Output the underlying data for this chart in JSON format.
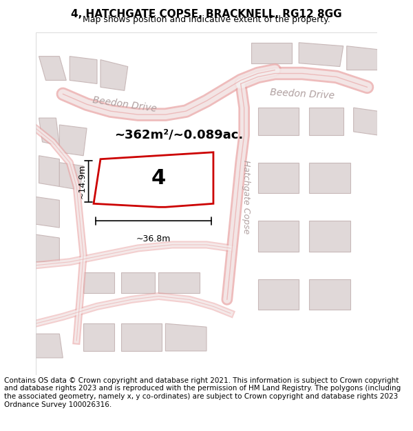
{
  "title_line1": "4, HATCHGATE COPSE, BRACKNELL, RG12 8GG",
  "title_line2": "Map shows position and indicative extent of the property.",
  "footer_text": "Contains OS data © Crown copyright and database right 2021. This information is subject to Crown copyright and database rights 2023 and is reproduced with the permission of HM Land Registry. The polygons (including the associated geometry, namely x, y co-ordinates) are subject to Crown copyright and database rights 2023 Ordnance Survey 100026316.",
  "bg_color": "#f5f0f0",
  "map_bg": "#f9f7f7",
  "road_color": "#e8a0a0",
  "building_color": "#d8d0d0",
  "building_fill": "#e0d8d8",
  "plot_color": "#cc0000",
  "plot_fill": "#ffffff",
  "street_label_color": "#aaaaaa",
  "annotation_color": "#000000",
  "title_fontsize": 11,
  "subtitle_fontsize": 9,
  "footer_fontsize": 7.5,
  "area_label": "~362m²/~0.089ac.",
  "number_label": "4",
  "width_label": "~36.8m",
  "height_label": "~14.9m",
  "beedon_drive_label1": "Beedon Drive",
  "beedon_drive_label2": "Beedon Drive",
  "hatchgate_copse_label": "Hatchgate Copse",
  "map_xlim": [
    0,
    1
  ],
  "map_ylim": [
    0,
    1
  ]
}
